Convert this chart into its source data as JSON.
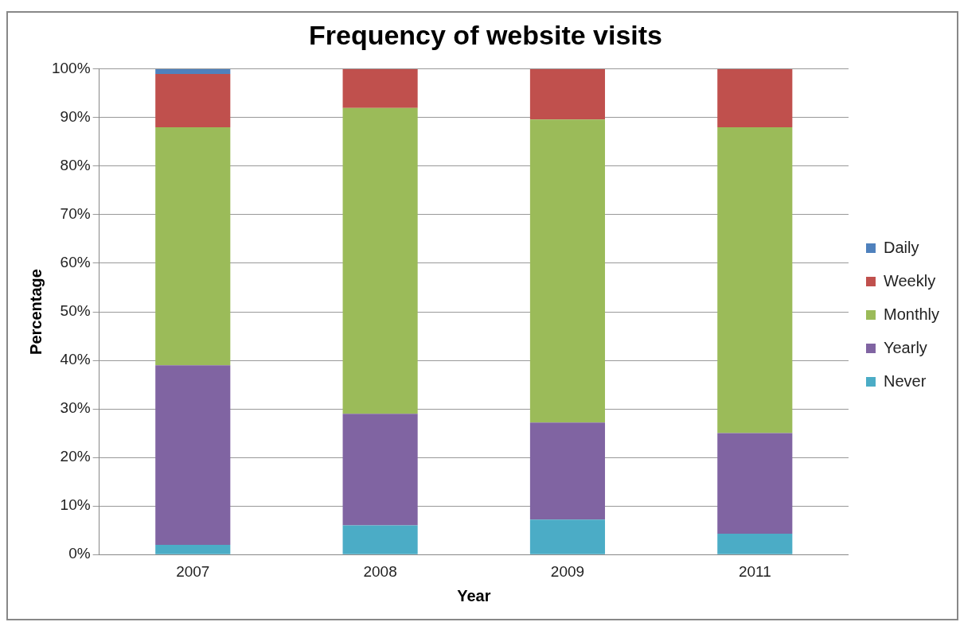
{
  "chart_data": {
    "type": "bar",
    "title": "Frequency of website visits",
    "xlabel": "Year",
    "ylabel": "Percentage",
    "categories": [
      "2007",
      "2008",
      "2009",
      "2011"
    ],
    "stacked": true,
    "series": [
      {
        "name": "Never",
        "color": "#4bacc6",
        "values": [
          2,
          6,
          7.2,
          4.3
        ]
      },
      {
        "name": "Yearly",
        "color": "#8064a2",
        "values": [
          37,
          23,
          20,
          20.7
        ]
      },
      {
        "name": "Monthly",
        "color": "#9bbb59",
        "values": [
          49,
          63,
          62.4,
          63
        ]
      },
      {
        "name": "Weekly",
        "color": "#c0504d",
        "values": [
          11,
          8,
          10.4,
          12
        ]
      },
      {
        "name": "Daily",
        "color": "#4f81bd",
        "values": [
          1,
          0,
          0,
          0
        ]
      }
    ],
    "ylim": [
      0,
      100
    ],
    "yticks": [
      {
        "value": 0,
        "label": "0%"
      },
      {
        "value": 10,
        "label": "10%"
      },
      {
        "value": 20,
        "label": "20%"
      },
      {
        "value": 30,
        "label": "30%"
      },
      {
        "value": 40,
        "label": "40%"
      },
      {
        "value": 50,
        "label": "50%"
      },
      {
        "value": 60,
        "label": "60%"
      },
      {
        "value": 70,
        "label": "70%"
      },
      {
        "value": 80,
        "label": "80%"
      },
      {
        "value": 90,
        "label": "90%"
      },
      {
        "value": 100,
        "label": "100%"
      }
    ],
    "grid": "y",
    "legend": "right"
  }
}
